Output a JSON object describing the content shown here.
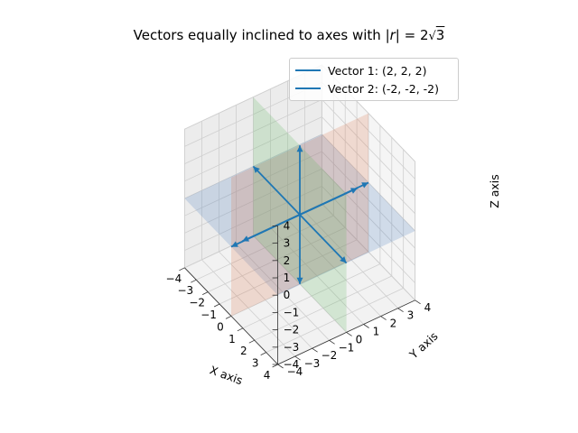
{
  "chart_data": {
    "type": "line",
    "projection": "3d",
    "title_prefix": "Vectors equally inclined to axes with |",
    "title_vector": "r",
    "title_mid": "| = 2",
    "title_root": "3",
    "xlabel": "X axis",
    "ylabel": "Y axis",
    "zlabel": "Z axis",
    "xlim": [
      -4,
      4
    ],
    "ylim": [
      -4,
      4
    ],
    "zlim": [
      -4,
      4
    ],
    "ticks": [
      "−4",
      "−3",
      "−2",
      "−1",
      "0",
      "1",
      "2",
      "3",
      "4"
    ],
    "grid": true,
    "legend_position": "top-right",
    "series": [
      {
        "name": "Vector 1: (2, 2, 2)",
        "color": "#1f77b4"
      },
      {
        "name": "Vector 2: (-2, -2, -2)",
        "color": "#1f77b4"
      }
    ],
    "vectors": [
      {
        "from": [
          0,
          0,
          0
        ],
        "to": [
          2,
          2,
          2
        ]
      },
      {
        "from": [
          0,
          0,
          0
        ],
        "to": [
          -2,
          -2,
          -2
        ]
      },
      {
        "from": [
          0,
          0,
          0
        ],
        "to": [
          4,
          0,
          0
        ]
      },
      {
        "from": [
          0,
          0,
          0
        ],
        "to": [
          -4,
          0,
          0
        ]
      },
      {
        "from": [
          0,
          0,
          0
        ],
        "to": [
          0,
          4,
          0
        ]
      },
      {
        "from": [
          0,
          0,
          0
        ],
        "to": [
          0,
          -4,
          0
        ]
      },
      {
        "from": [
          0,
          0,
          0
        ],
        "to": [
          0,
          0,
          4
        ]
      },
      {
        "from": [
          0,
          0,
          0
        ],
        "to": [
          0,
          0,
          -4
        ]
      }
    ],
    "planes": [
      {
        "name": "xy-plane",
        "color": "#4f81bd"
      },
      {
        "name": "yz-plane",
        "color": "#d9774f"
      },
      {
        "name": "xz-plane",
        "color": "#5fb85f"
      }
    ],
    "vector_color": "#1f77b4"
  }
}
